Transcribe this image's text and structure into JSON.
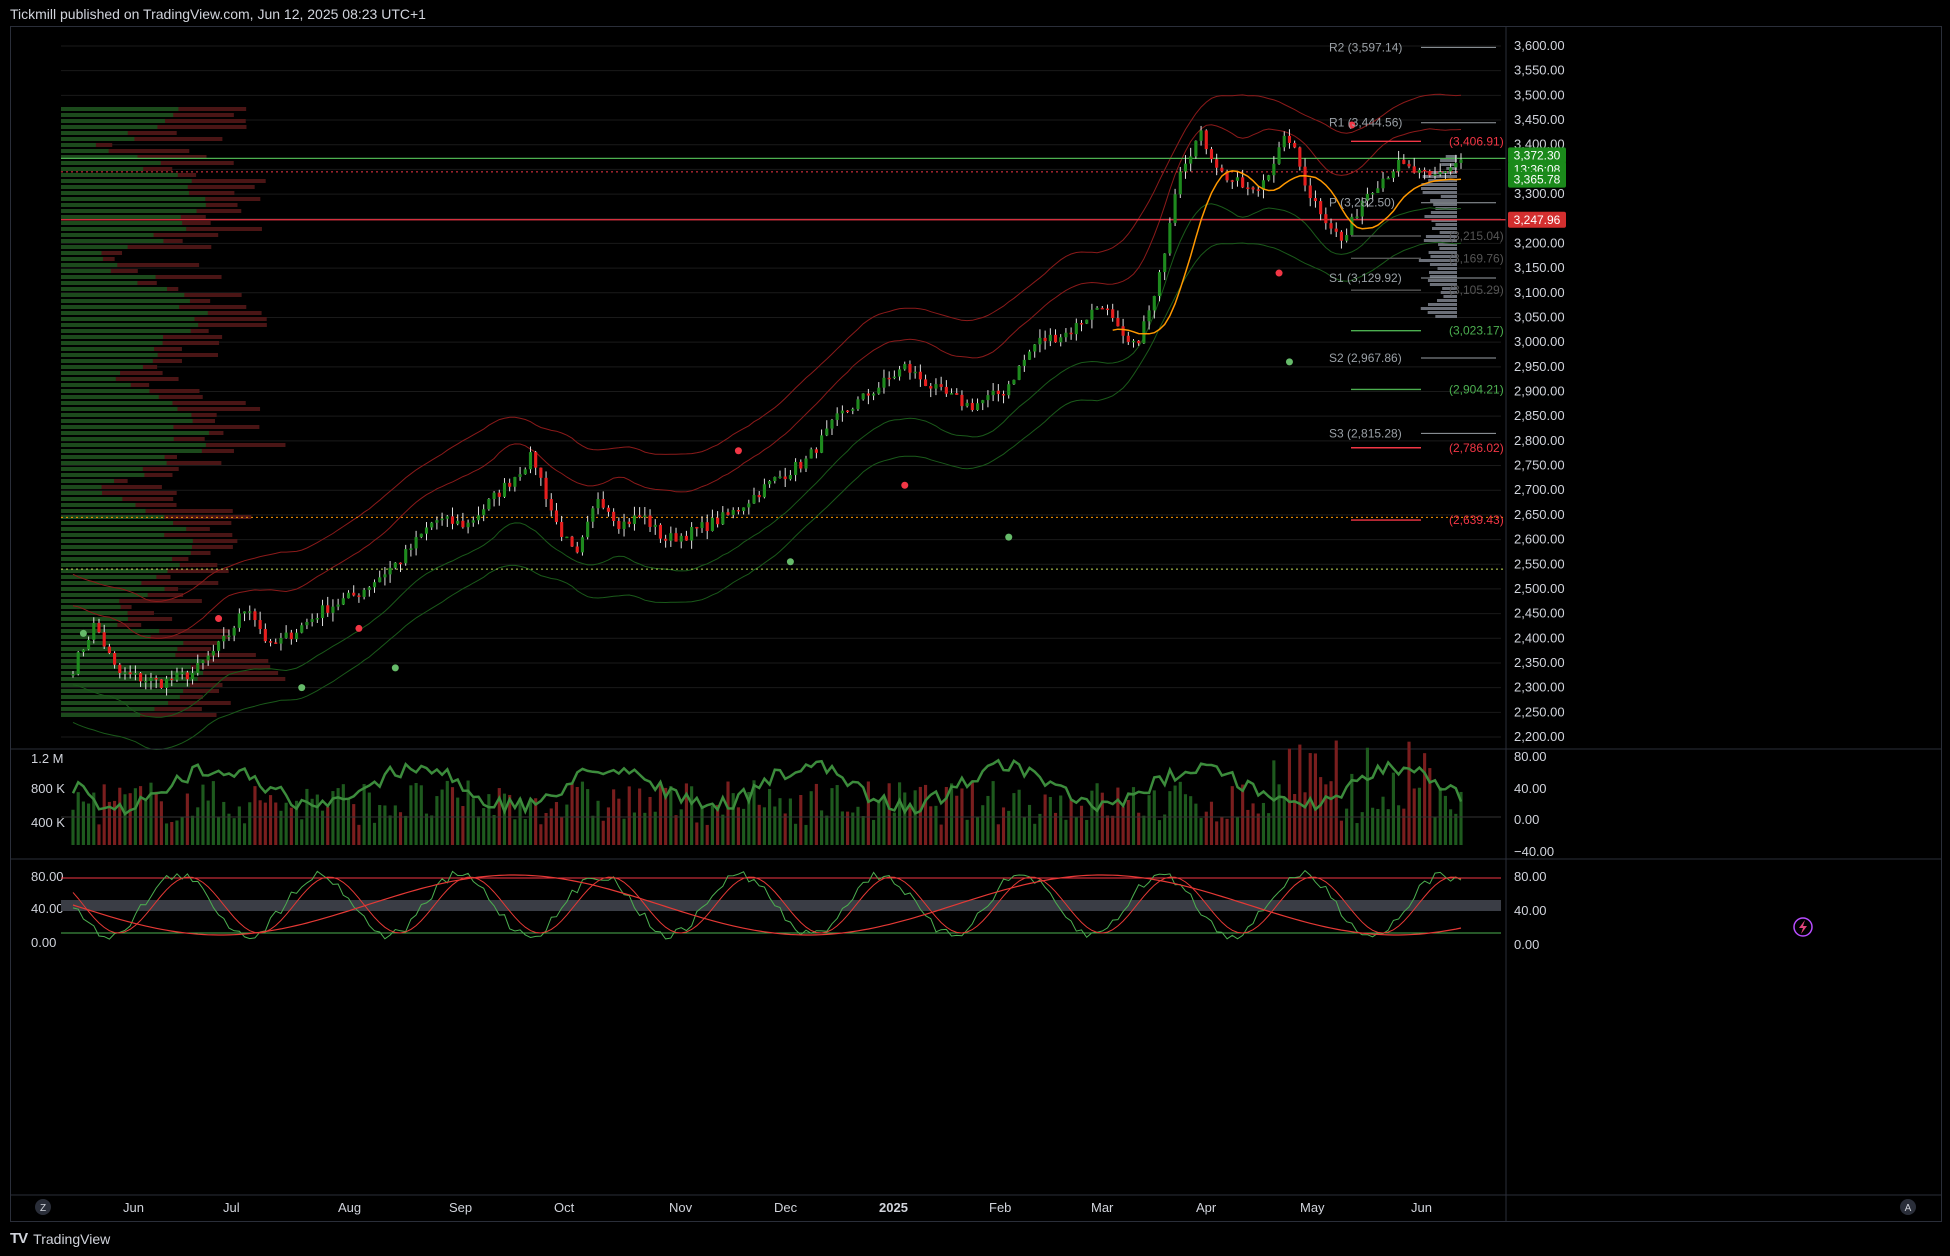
{
  "header": {
    "publisher": "Tickmill published on TradingView.com, Jun 12, 2025 08:23 UTC+1"
  },
  "footer": {
    "brand": "TradingView",
    "logo": "TV"
  },
  "colors": {
    "up": "#1e8a1e",
    "down": "#e61e1e",
    "grid": "#1a1a1a",
    "red_line": "#f23645",
    "green_line": "#4caf50",
    "orange": "#ff9800"
  },
  "price_axis": {
    "ticks": [
      "3,600.00",
      "3,550.00",
      "3,500.00",
      "3,450.00",
      "3,400.00",
      "3,350.00",
      "3,300.00",
      "3,250.00",
      "3,200.00",
      "3,150.00",
      "3,100.00",
      "3,050.00",
      "3,000.00",
      "2,950.00",
      "2,900.00",
      "2,850.00",
      "2,800.00",
      "2,750.00",
      "2,700.00",
      "2,650.00",
      "2,600.00",
      "2,550.00",
      "2,500.00",
      "2,450.00",
      "2,400.00",
      "2,350.00",
      "2,300.00",
      "2,250.00",
      "2,200.00"
    ]
  },
  "price_badges": {
    "last": "3,372.30",
    "countdown": "13:36:08",
    "second": "3,365.78",
    "red": "3,247.96"
  },
  "pivots": [
    {
      "label": "R2 (3,597.14)",
      "value": 3597.14,
      "color": "#9aa0a6"
    },
    {
      "label": "R1 (3,444.56)",
      "value": 3444.56,
      "color": "#9aa0a6"
    },
    {
      "label": "P (3,282.50)",
      "value": 3282.5,
      "color": "#9aa0a6"
    },
    {
      "label": "S1 (3,129.92)",
      "value": 3129.92,
      "color": "#9aa0a6"
    },
    {
      "label": "S2 (2,967.86)",
      "value": 2967.86,
      "color": "#9aa0a6"
    },
    {
      "label": "S3 (2,815.28)",
      "value": 2815.28,
      "color": "#9aa0a6"
    }
  ],
  "levels": [
    {
      "label": "(3,406.91)",
      "value": 3406.91,
      "color": "#f23645"
    },
    {
      "label": "(3,215.04)",
      "value": 3215.04,
      "color": "#555"
    },
    {
      "label": "(3,169.76)",
      "value": 3169.76,
      "color": "#555"
    },
    {
      "label": "(3,105.29)",
      "value": 3105.29,
      "color": "#555"
    },
    {
      "label": "(3,023.17)",
      "value": 3023.17,
      "color": "#4caf50"
    },
    {
      "label": "(2,904.21)",
      "value": 2904.21,
      "color": "#4caf50"
    },
    {
      "label": "(2,786.02)",
      "value": 2786.02,
      "color": "#f23645"
    },
    {
      "label": "(2,639.43)",
      "value": 2639.43,
      "color": "#f23645"
    }
  ],
  "volume_axis": {
    "left": [
      "1.2 M",
      "800 K",
      "400 K"
    ],
    "right": [
      "80.00",
      "40.00",
      "0.00",
      "−40.00"
    ]
  },
  "stoch_axis": {
    "left": [
      "80.00",
      "40.00",
      "0.00"
    ],
    "right": [
      "80.00",
      "40.00",
      "0.00"
    ]
  },
  "time_axis": [
    {
      "label": "Jun",
      "bold": false
    },
    {
      "label": "Jul",
      "bold": false
    },
    {
      "label": "Aug",
      "bold": false
    },
    {
      "label": "Sep",
      "bold": false
    },
    {
      "label": "Oct",
      "bold": false
    },
    {
      "label": "Nov",
      "bold": false
    },
    {
      "label": "Dec",
      "bold": false
    },
    {
      "label": "2025",
      "bold": true
    },
    {
      "label": "Feb",
      "bold": false
    },
    {
      "label": "Mar",
      "bold": false
    },
    {
      "label": "Apr",
      "bold": false
    },
    {
      "label": "May",
      "bold": false
    },
    {
      "label": "Jun",
      "bold": false
    }
  ],
  "corner_buttons": {
    "left": "Z",
    "right": "A"
  },
  "icons": {
    "alert": "lightning-icon"
  }
}
